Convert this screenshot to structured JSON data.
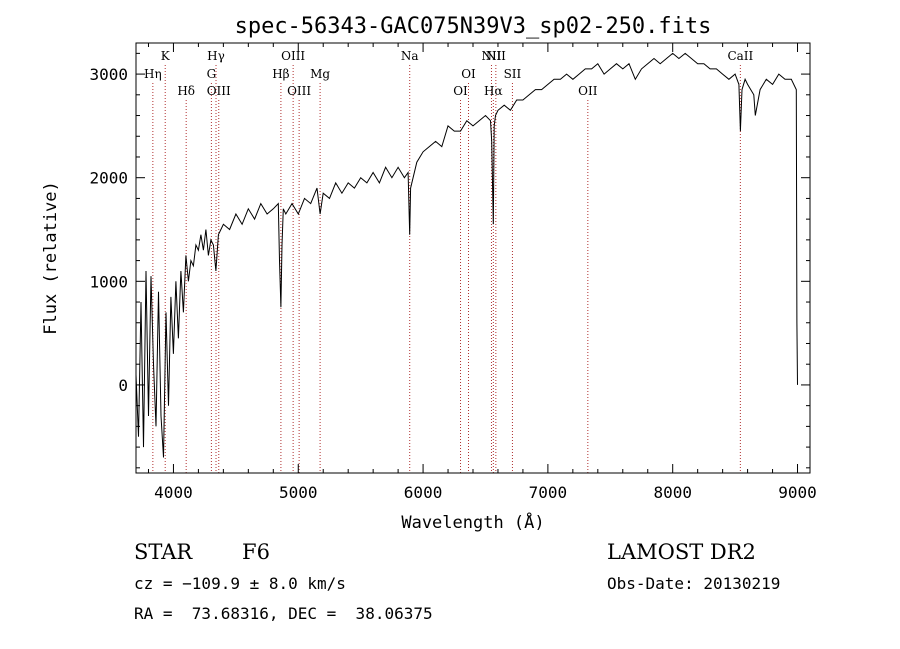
{
  "chart_data": {
    "type": "line",
    "title": "spec-56343-GAC075N39V3_sp02-250.fits",
    "xlabel": "Wavelength (Å)",
    "ylabel": "Flux (relative)",
    "xlim": [
      3700,
      9100
    ],
    "ylim": [
      -850,
      3300
    ],
    "xticks": [
      4000,
      5000,
      6000,
      7000,
      8000,
      9000
    ],
    "yticks": [
      0,
      1000,
      2000,
      3000
    ],
    "grid": false,
    "series": [
      {
        "color": "#000000",
        "x": [
          3700,
          3720,
          3740,
          3760,
          3780,
          3800,
          3820,
          3840,
          3860,
          3880,
          3900,
          3920,
          3940,
          3960,
          3980,
          4000,
          4020,
          4040,
          4060,
          4080,
          4100,
          4120,
          4140,
          4160,
          4180,
          4200,
          4220,
          4240,
          4260,
          4280,
          4300,
          4320,
          4340,
          4360,
          4380,
          4400,
          4450,
          4500,
          4550,
          4600,
          4650,
          4700,
          4750,
          4800,
          4840,
          4850,
          4861,
          4870,
          4880,
          4900,
          4950,
          5000,
          5050,
          5100,
          5150,
          5175,
          5200,
          5250,
          5300,
          5350,
          5400,
          5450,
          5500,
          5550,
          5600,
          5650,
          5700,
          5750,
          5800,
          5850,
          5880,
          5893,
          5900,
          5950,
          6000,
          6050,
          6100,
          6150,
          6200,
          6250,
          6300,
          6350,
          6400,
          6450,
          6500,
          6540,
          6550,
          6563,
          6570,
          6580,
          6600,
          6650,
          6700,
          6750,
          6800,
          6850,
          6900,
          6950,
          7000,
          7050,
          7100,
          7150,
          7200,
          7250,
          7300,
          7350,
          7400,
          7450,
          7500,
          7550,
          7600,
          7650,
          7700,
          7750,
          7800,
          7850,
          7900,
          7950,
          8000,
          8050,
          8100,
          8150,
          8200,
          8250,
          8300,
          8350,
          8400,
          8450,
          8500,
          8530,
          8542,
          8555,
          8580,
          8600,
          8650,
          8662,
          8700,
          8750,
          8800,
          8850,
          8900,
          8950,
          8990,
          8995,
          9000
        ],
        "values": [
          100,
          -500,
          800,
          -600,
          1100,
          -300,
          1050,
          200,
          -400,
          900,
          -300,
          -700,
          700,
          -200,
          850,
          300,
          1000,
          450,
          1100,
          700,
          1250,
          1000,
          1200,
          1150,
          1350,
          1300,
          1450,
          1300,
          1500,
          1250,
          1400,
          1350,
          1100,
          1450,
          1500,
          1550,
          1500,
          1650,
          1550,
          1700,
          1600,
          1750,
          1650,
          1700,
          1750,
          1200,
          750,
          1350,
          1700,
          1650,
          1750,
          1650,
          1800,
          1750,
          1900,
          1650,
          1850,
          1800,
          1950,
          1850,
          1950,
          1900,
          2000,
          1950,
          2050,
          1950,
          2100,
          2000,
          2100,
          2000,
          2050,
          1450,
          1900,
          2150,
          2250,
          2300,
          2350,
          2300,
          2500,
          2450,
          2450,
          2550,
          2500,
          2550,
          2600,
          2550,
          2350,
          1550,
          2500,
          2600,
          2650,
          2700,
          2650,
          2750,
          2750,
          2800,
          2850,
          2850,
          2900,
          2950,
          2950,
          3000,
          2950,
          3000,
          3050,
          3050,
          3100,
          3000,
          3050,
          3100,
          3050,
          3100,
          2950,
          3050,
          3100,
          3150,
          3100,
          3150,
          3200,
          3150,
          3200,
          3150,
          3100,
          3100,
          3050,
          3050,
          3000,
          2950,
          3000,
          2900,
          2450,
          2850,
          2950,
          2900,
          2800,
          2600,
          2850,
          2950,
          2900,
          3000,
          2950,
          2950,
          2850,
          600,
          0
        ]
      }
    ],
    "lines": [
      {
        "wave": 3835,
        "label": "Hη",
        "row": 2
      },
      {
        "wave": 3934,
        "label": "K",
        "row": 1
      },
      {
        "wave": 4102,
        "label": "Hδ",
        "row": 3
      },
      {
        "wave": 4304,
        "label": "G",
        "row": 2
      },
      {
        "wave": 4341,
        "label": "Hγ",
        "row": 1
      },
      {
        "wave": 4363,
        "label": "OIII",
        "row": 3
      },
      {
        "wave": 4861,
        "label": "Hβ",
        "row": 2
      },
      {
        "wave": 4959,
        "label": "OIII",
        "row": 1
      },
      {
        "wave": 5007,
        "label": "OIII",
        "row": 3
      },
      {
        "wave": 5175,
        "label": "Mg",
        "row": 2
      },
      {
        "wave": 5893,
        "label": "Na",
        "row": 1
      },
      {
        "wave": 6300,
        "label": "OI",
        "row": 3
      },
      {
        "wave": 6364,
        "label": "OI",
        "row": 2
      },
      {
        "wave": 6548,
        "label": "NII",
        "row": 1
      },
      {
        "wave": 6563,
        "label": "Hα",
        "row": 3
      },
      {
        "wave": 6583,
        "label": "NII",
        "row": 1
      },
      {
        "wave": 6716,
        "label": "SII",
        "row": 2
      },
      {
        "wave": 7320,
        "label": "OII",
        "row": 3
      },
      {
        "wave": 8542,
        "label": "CaII",
        "row": 1
      }
    ]
  },
  "info": {
    "object_class": "STAR",
    "subclass": "F6",
    "cz": "cz = −109.9 ± 8.0 km/s",
    "coords": "RA =  73.68316, DEC =  38.06375",
    "survey": "LAMOST DR2",
    "obs_date": "Obs-Date: 20130219"
  },
  "colors": {
    "axis": "#000000",
    "spectrum": "#000000",
    "line_marker": "#b03030"
  }
}
